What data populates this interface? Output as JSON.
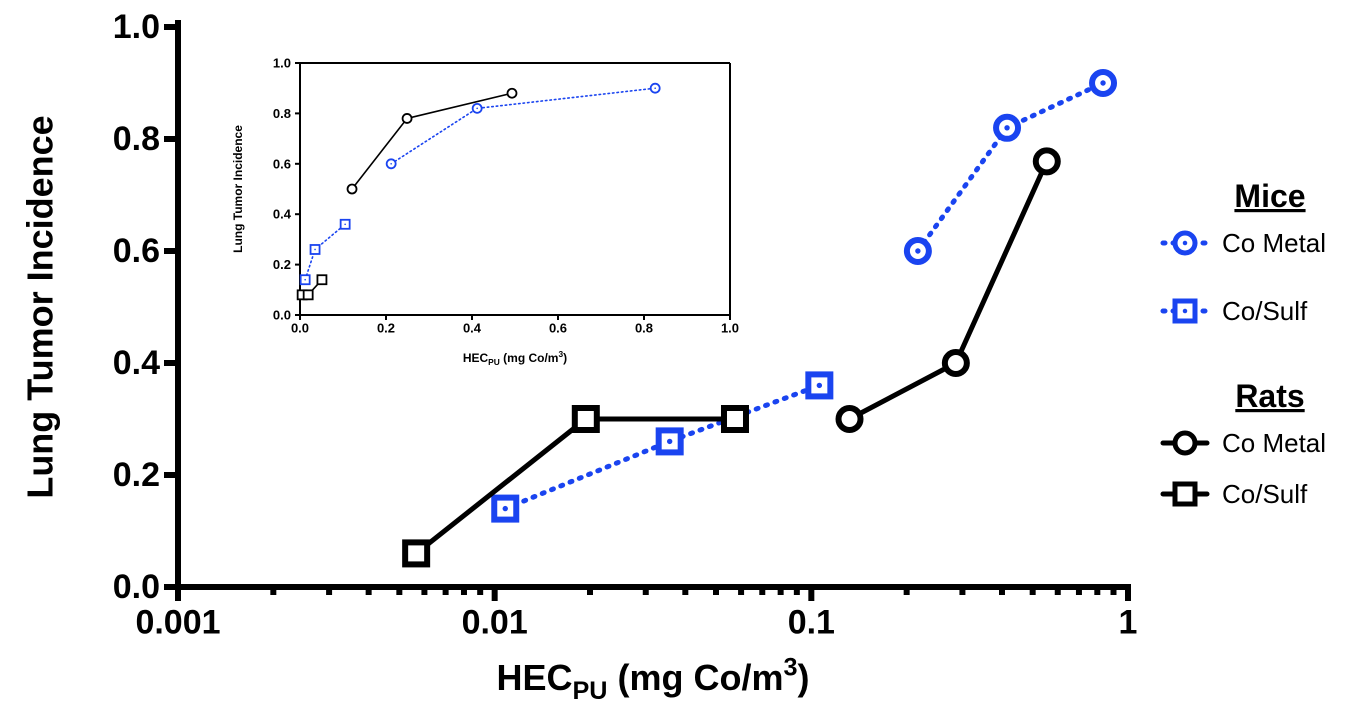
{
  "chart_data": [
    {
      "type": "line",
      "xscale": "log",
      "ylabel": "Lung Tumor Incidence",
      "xlabel_parts": [
        {
          "text": "HEC"
        },
        {
          "text": "PU",
          "sub": true
        },
        {
          "text": " (mg Co/m"
        },
        {
          "text": "3",
          "sup": true
        },
        {
          "text": ")"
        }
      ],
      "xlim": [
        0.001,
        1
      ],
      "ylim": [
        0,
        1
      ],
      "xticks": [
        0.001,
        0.01,
        0.1,
        1
      ],
      "xminorticks": [
        0.002,
        0.003,
        0.004,
        0.005,
        0.006,
        0.007,
        0.008,
        0.009,
        0.02,
        0.03,
        0.04,
        0.05,
        0.06,
        0.07,
        0.08,
        0.09,
        0.2,
        0.3,
        0.4,
        0.5,
        0.6,
        0.7,
        0.8,
        0.9
      ],
      "yticks": [
        {
          "value": 0,
          "label": "0.0"
        },
        {
          "value": 0.2,
          "label": "0.2"
        },
        {
          "value": 0.4,
          "label": "0.4"
        },
        {
          "value": 0.6,
          "label": "0.6"
        },
        {
          "value": 0.8,
          "label": "0.8"
        },
        {
          "value": 1,
          "label": "1.0"
        }
      ],
      "series_groups": [
        {
          "name": "Mice",
          "series": [
            {
              "name": "Co Metal",
              "color": "#1a44f0",
              "marker": "circle-dot",
              "dash": true,
              "x": [
                0.217,
                0.415,
                0.834
              ],
              "values": [
                0.6,
                0.82,
                0.9
              ]
            },
            {
              "name": "Co/Sulf",
              "color": "#1a44f0",
              "marker": "square-dot",
              "dash": true,
              "x": [
                0.0108,
                0.0357,
                0.106
              ],
              "values": [
                0.14,
                0.26,
                0.36
              ]
            }
          ]
        },
        {
          "name": "Rats",
          "series": [
            {
              "name": "Co Metal",
              "color": "#000000",
              "marker": "circle",
              "dash": false,
              "x": [
                0.132,
                0.286,
                0.554
              ],
              "values": [
                0.3,
                0.4,
                0.76
              ]
            },
            {
              "name": "Co/Sulf",
              "color": "#000000",
              "marker": "square",
              "dash": false,
              "x": [
                0.00565,
                0.0194,
                0.0574
              ],
              "values": [
                0.06,
                0.3,
                0.3
              ]
            }
          ]
        }
      ]
    },
    {
      "type": "line",
      "xscale": "linear",
      "ylabel": "Lung Tumor Incidence",
      "xlabel_parts": [
        {
          "text": "HEC"
        },
        {
          "text": "PU",
          "sub": true
        },
        {
          "text": " (mg Co/m"
        },
        {
          "text": "3",
          "sup": true
        },
        {
          "text": ")"
        }
      ],
      "xlim": [
        0,
        1
      ],
      "ylim": [
        0,
        1
      ],
      "xticks": [
        {
          "value": 0,
          "label": "0.0"
        },
        {
          "value": 0.2,
          "label": "0.2"
        },
        {
          "value": 0.4,
          "label": "0.4"
        },
        {
          "value": 0.6,
          "label": "0.6"
        },
        {
          "value": 0.8,
          "label": "0.8"
        },
        {
          "value": 1,
          "label": "1.0"
        }
      ],
      "yticks": [
        {
          "value": 0,
          "label": "0.0"
        },
        {
          "value": 0.2,
          "label": "0.2"
        },
        {
          "value": 0.4,
          "label": "0.4"
        },
        {
          "value": 0.6,
          "label": "0.6"
        },
        {
          "value": 0.8,
          "label": "0.8"
        },
        {
          "value": 1,
          "label": "1.0"
        }
      ],
      "series": [
        {
          "color": "#1a44f0",
          "marker": "circle-dot",
          "dash": true,
          "x": [
            0.212,
            0.412,
            0.826
          ],
          "values": [
            0.6,
            0.82,
            0.9
          ]
        },
        {
          "color": "#1a44f0",
          "marker": "square-dot",
          "dash": true,
          "x": [
            0.012,
            0.035,
            0.105
          ],
          "values": [
            0.14,
            0.26,
            0.36
          ]
        },
        {
          "color": "#000000",
          "marker": "circle",
          "dash": false,
          "x": [
            0.121,
            0.249,
            0.493
          ],
          "values": [
            0.5,
            0.78,
            0.88
          ]
        },
        {
          "color": "#000000",
          "marker": "square",
          "dash": false,
          "x": [
            0.005,
            0.019,
            0.051
          ],
          "values": [
            0.08,
            0.08,
            0.14
          ]
        }
      ]
    }
  ]
}
